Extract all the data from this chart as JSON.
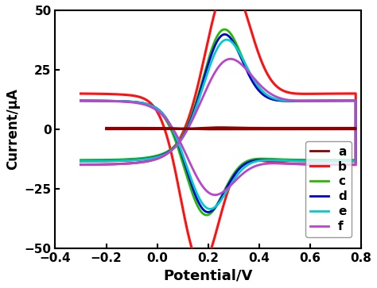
{
  "title": "",
  "xlabel": "Potential/V",
  "ylabel": "Current/μA",
  "xlim": [
    -0.4,
    0.8
  ],
  "ylim": [
    -50,
    50
  ],
  "xticks": [
    -0.4,
    -0.2,
    0.0,
    0.2,
    0.4,
    0.6,
    0.8
  ],
  "yticks": [
    -50,
    -25,
    0,
    25,
    50
  ],
  "legend_labels": [
    "a",
    "b",
    "c",
    "d",
    "e",
    "f"
  ],
  "colors": {
    "a": "#8B0000",
    "b": "#FF1111",
    "c": "#22BB00",
    "d": "#0000CC",
    "e": "#00CCCC",
    "f": "#BB44CC"
  },
  "linewidths": {
    "a": 2.0,
    "b": 2.2,
    "c": 2.0,
    "d": 2.0,
    "e": 2.0,
    "f": 2.0
  },
  "background_color": "#ffffff",
  "axes_bg": "#f0f0f0",
  "xlabel_fontsize": 13,
  "ylabel_fontsize": 12,
  "tick_fontsize": 11,
  "legend_fontsize": 11
}
